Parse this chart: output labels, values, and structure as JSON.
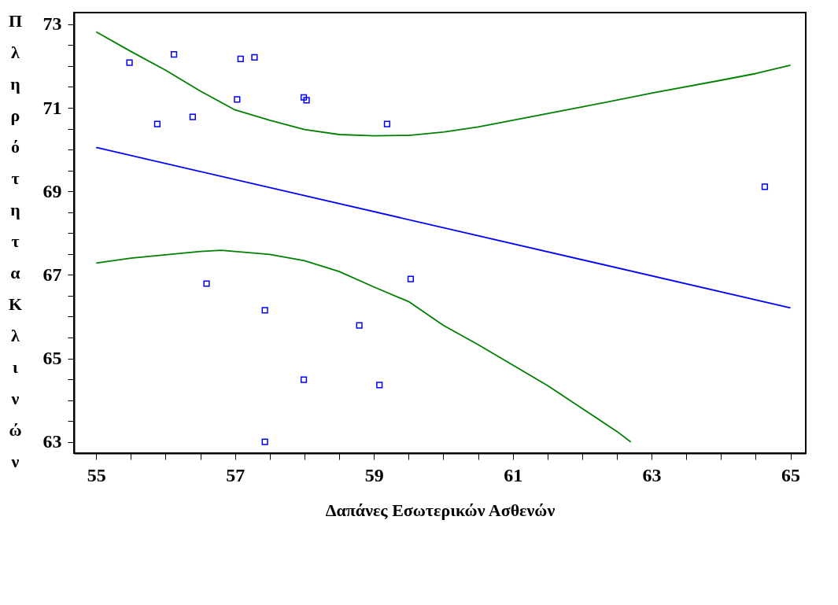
{
  "chart_data": {
    "type": "scatter",
    "xlabel": "Δαπάνες Εσωτερικών Ασθενών",
    "ylabel": "Πληρότητα Κλινών",
    "grid": false,
    "xlim": [
      54.68,
      65.22
    ],
    "ylim": [
      62.73,
      73.28
    ],
    "xticks": [
      55,
      {
        "value": 55.5,
        "label": null
      },
      {
        "value": 56,
        "label": null
      },
      {
        "value": 56.5,
        "label": null
      },
      57,
      {
        "value": 57.5,
        "label": null
      },
      {
        "value": 58,
        "label": null
      },
      {
        "value": 58.5,
        "label": null
      },
      59,
      {
        "value": 59.5,
        "label": null
      },
      {
        "value": 60,
        "label": null
      },
      {
        "value": 60.5,
        "label": null
      },
      61,
      {
        "value": 61.5,
        "label": null
      },
      {
        "value": 62,
        "label": null
      },
      {
        "value": 62.5,
        "label": null
      },
      63,
      {
        "value": 63.5,
        "label": null
      },
      {
        "value": 64,
        "label": null
      },
      {
        "value": 64.5,
        "label": null
      },
      65
    ],
    "yticks": [
      63,
      {
        "value": 63.5,
        "label": null
      },
      {
        "value": 64,
        "label": null
      },
      {
        "value": 64.5,
        "label": null
      },
      65,
      {
        "value": 65.5,
        "label": null
      },
      {
        "value": 66,
        "label": null
      },
      {
        "value": 66.5,
        "label": null
      },
      67,
      {
        "value": 67.5,
        "label": null
      },
      {
        "value": 68,
        "label": null
      },
      {
        "value": 68.5,
        "label": null
      },
      69,
      {
        "value": 69.5,
        "label": null
      },
      {
        "value": 70,
        "label": null
      },
      {
        "value": 70.5,
        "label": null
      },
      71,
      {
        "value": 71.5,
        "label": null
      },
      {
        "value": 72,
        "label": null
      },
      {
        "value": 72.5,
        "label": null
      },
      73
    ],
    "series": [
      {
        "type": "scatter",
        "marker": "square",
        "color": "#0000ff",
        "x": [
          55.48,
          56.12,
          55.88,
          56.39,
          57.08,
          57.28,
          57.03,
          57.99,
          58.03,
          59.19,
          64.63,
          56.59,
          57.43,
          59.53,
          58.79,
          57.99,
          59.08,
          57.43
        ],
        "values": [
          72.08,
          72.28,
          70.61,
          70.78,
          72.17,
          72.21,
          71.2,
          71.25,
          71.18,
          70.61,
          69.11,
          66.79,
          66.15,
          66.9,
          65.79,
          64.49,
          64.36,
          63.0
        ]
      },
      {
        "type": "line",
        "color": "#0000ff",
        "x": [
          55,
          65
        ],
        "values": [
          70.05,
          66.21
        ]
      },
      {
        "type": "line",
        "color": "#008000",
        "x": [
          55,
          55.5,
          56,
          56.5,
          57,
          57.5,
          58,
          58.5,
          59,
          59.5,
          60,
          60.5,
          61,
          62,
          63,
          64,
          64.5,
          65
        ],
        "values": [
          72.82,
          72.35,
          71.9,
          71.4,
          70.95,
          70.7,
          70.48,
          70.36,
          70.33,
          70.34,
          70.42,
          70.54,
          70.7,
          71.02,
          71.35,
          71.66,
          71.82,
          72.02
        ]
      },
      {
        "type": "line",
        "color": "#008000",
        "x": [
          55,
          55.5,
          56,
          56.5,
          56.8,
          57.5,
          58,
          58.5,
          59,
          59.5,
          60,
          60.5,
          61,
          61.5,
          62,
          62.5,
          62.7
        ],
        "values": [
          67.28,
          67.4,
          67.48,
          67.56,
          67.59,
          67.49,
          67.34,
          67.08,
          66.71,
          66.36,
          65.79,
          65.33,
          64.84,
          64.35,
          63.8,
          63.25,
          63.0
        ]
      }
    ]
  }
}
